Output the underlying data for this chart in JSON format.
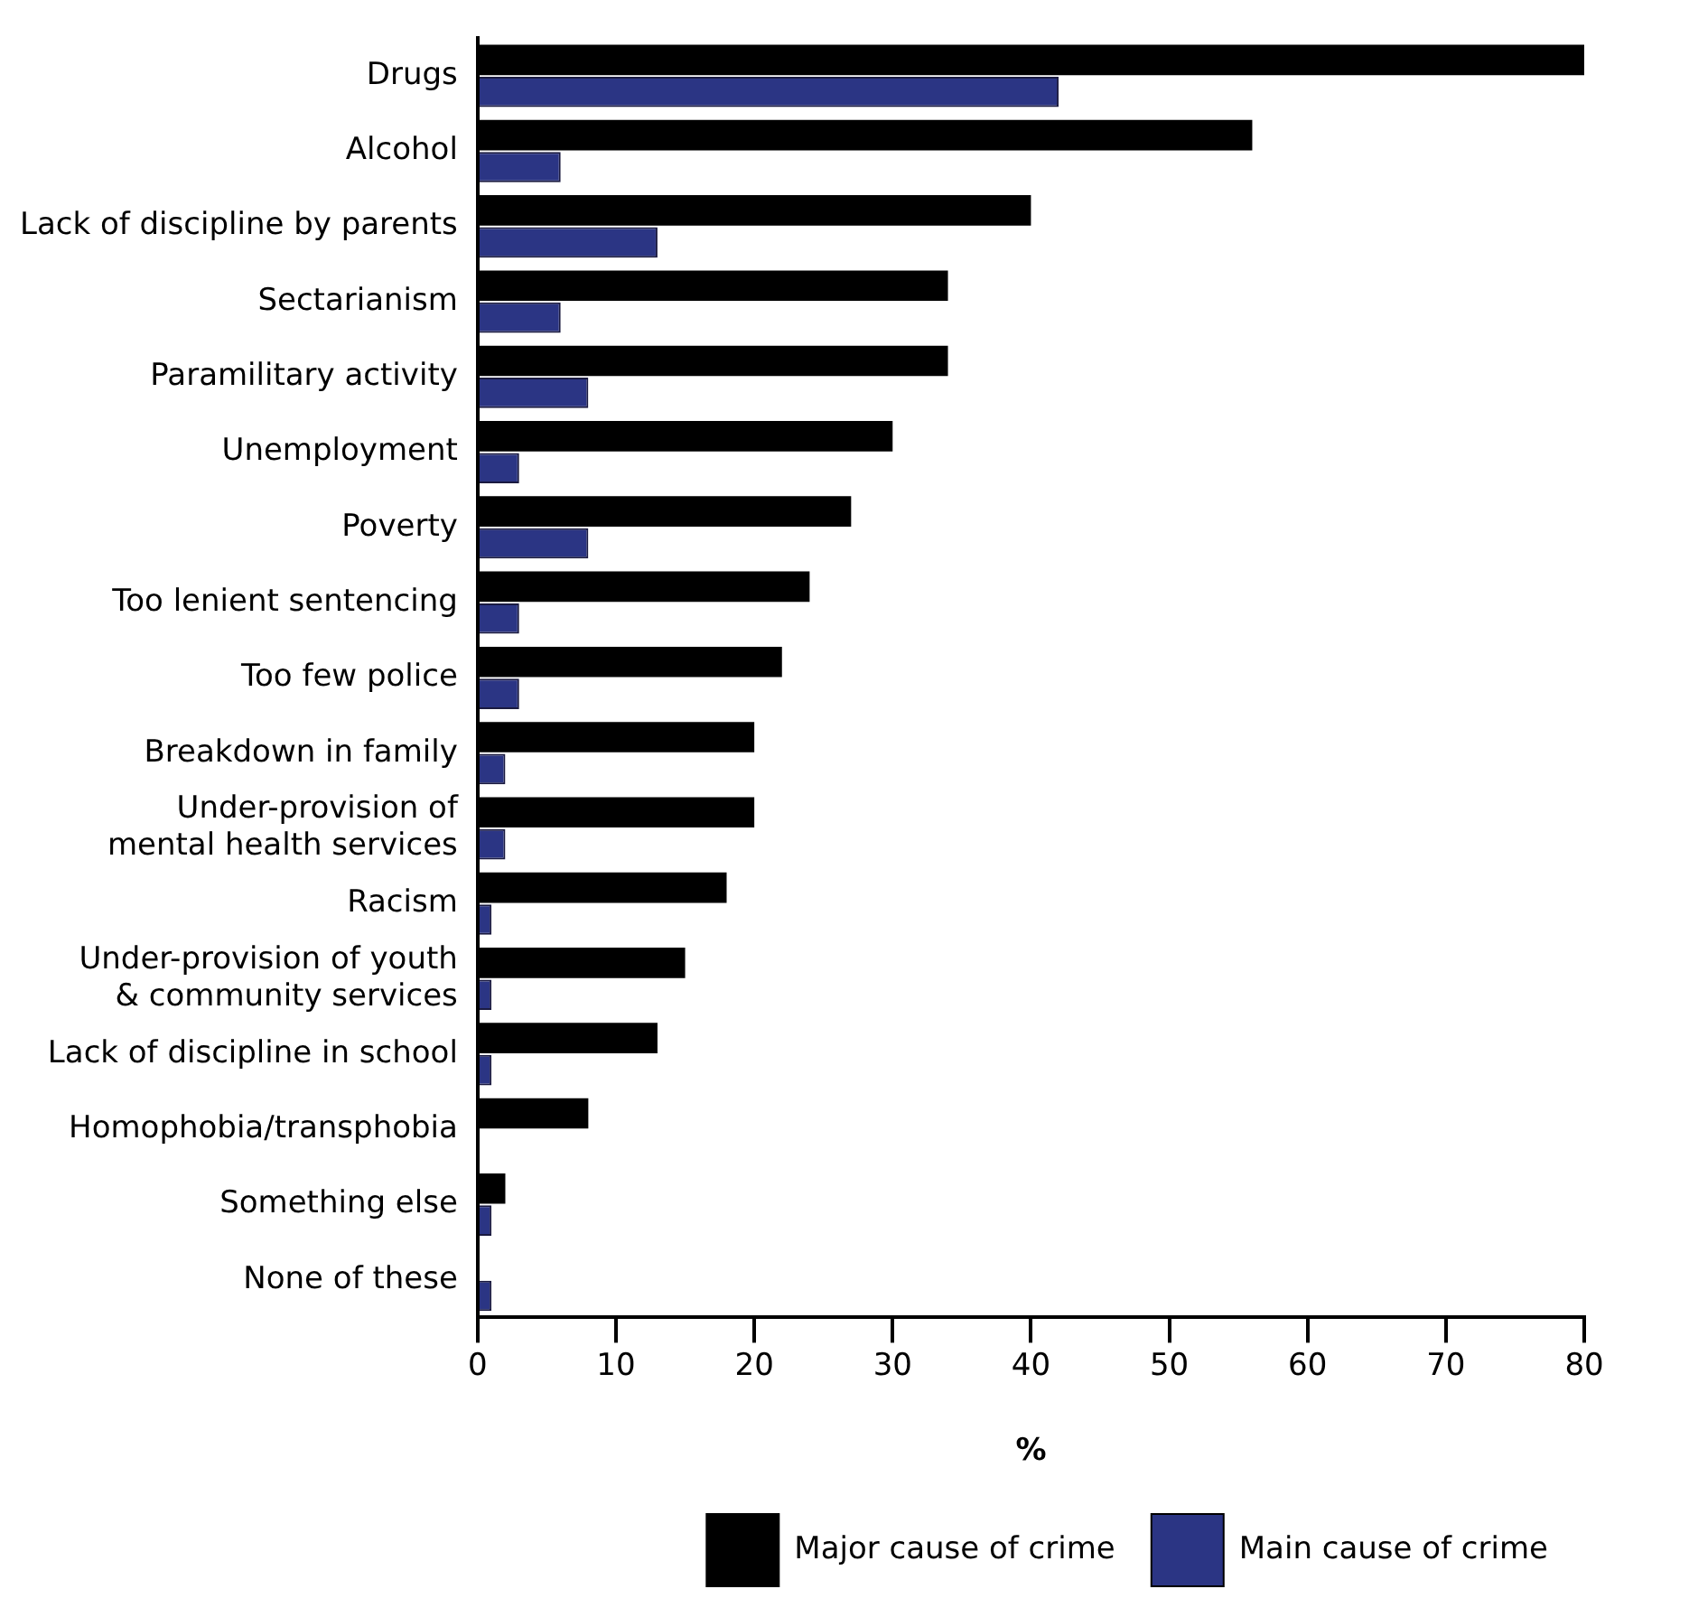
{
  "chart_data": {
    "type": "bar",
    "orientation": "horizontal",
    "xlabel": "%",
    "categories": [
      "Drugs",
      "Alcohol",
      "Lack of discipline by parents",
      "Sectarianism",
      "Paramilitary activity",
      "Unemployment",
      "Poverty",
      "Too lenient sentencing",
      "Too few police",
      "Breakdown in family",
      "Under-provision of\nmental health services",
      "Racism",
      "Under-provision of youth\n& community services",
      "Lack of discipline in school",
      "Homophobia/transphobia",
      "Something else",
      "None of these"
    ],
    "series": [
      {
        "name": "Major cause of crime",
        "color": "#000000",
        "values": [
          80,
          56,
          40,
          34,
          34,
          30,
          27,
          24,
          22,
          20,
          20,
          18,
          15,
          13,
          8,
          2,
          0
        ]
      },
      {
        "name": "Main cause of crime",
        "color": "#2b3584",
        "values": [
          42,
          6,
          13,
          6,
          8,
          3,
          8,
          3,
          3,
          2,
          2,
          1,
          1,
          1,
          0,
          1,
          1
        ]
      }
    ],
    "xlim": [
      0,
      80
    ],
    "xticks": [
      0,
      10,
      20,
      30,
      40,
      50,
      60,
      70,
      80
    ],
    "grid": false,
    "legend": "bottom"
  }
}
